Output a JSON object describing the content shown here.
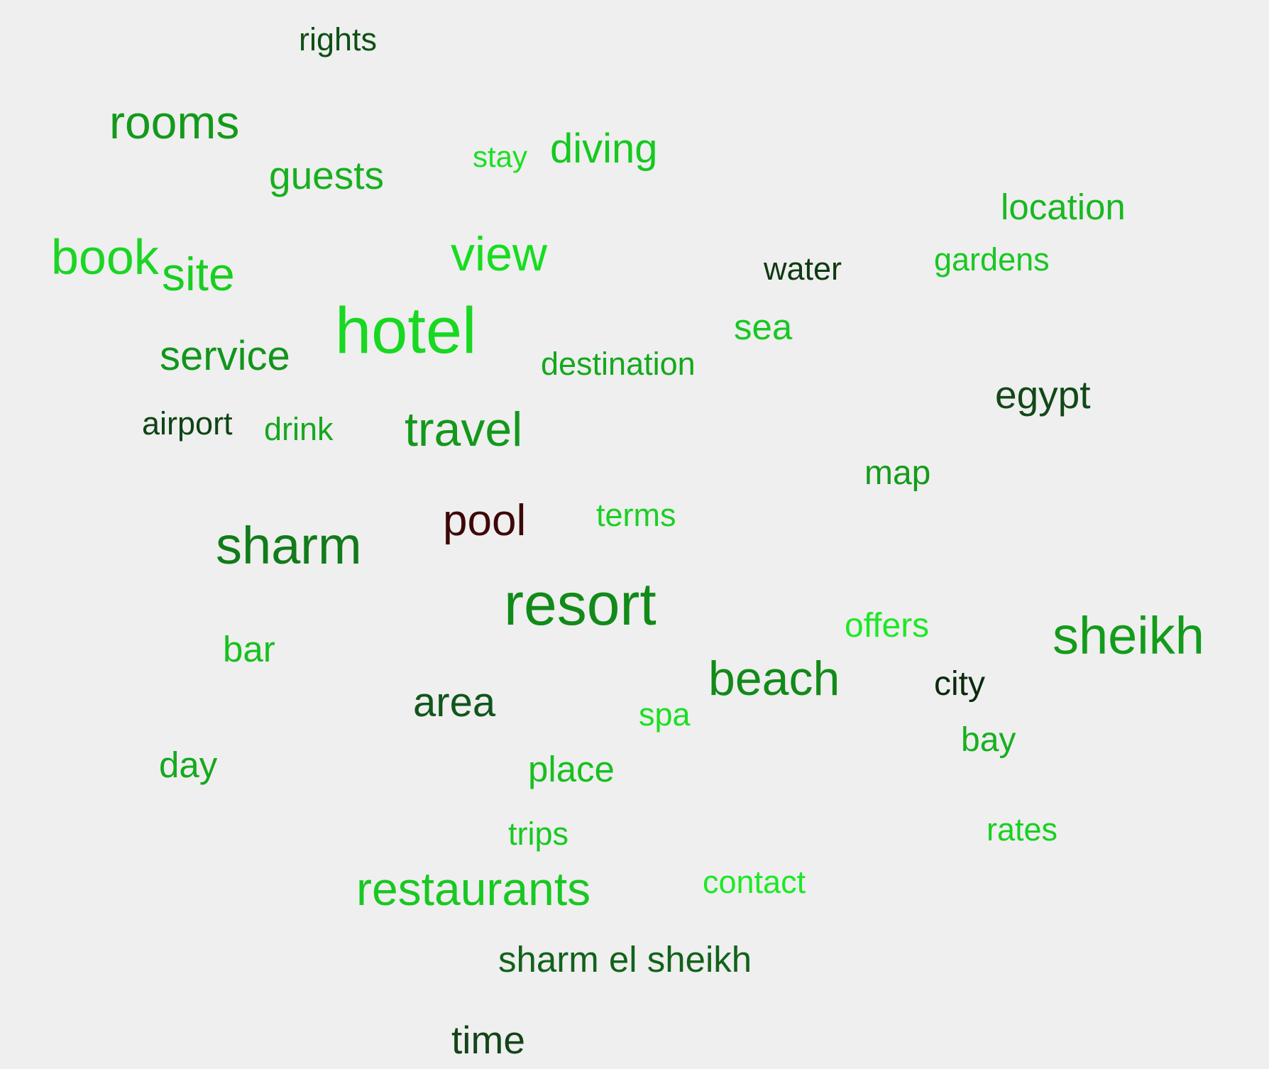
{
  "background": "#efefef",
  "words": [
    {
      "text": "rights",
      "color": "#0f4f16"
    },
    {
      "text": "rooms",
      "color": "#139a1b"
    },
    {
      "text": "guests",
      "color": "#16b01e"
    },
    {
      "text": "stay",
      "color": "#1adf23"
    },
    {
      "text": "diving",
      "color": "#16c81f"
    },
    {
      "text": "location",
      "color": "#18b821"
    },
    {
      "text": "book",
      "color": "#1bd524"
    },
    {
      "text": "site",
      "color": "#18ce21"
    },
    {
      "text": "view",
      "color": "#16dd1f"
    },
    {
      "text": "water",
      "color": "#103913"
    },
    {
      "text": "gardens",
      "color": "#18c821"
    },
    {
      "text": "hotel",
      "color": "#18d821"
    },
    {
      "text": "sea",
      "color": "#18c821"
    },
    {
      "text": "service",
      "color": "#12951a"
    },
    {
      "text": "destination",
      "color": "#15a81d"
    },
    {
      "text": "egypt",
      "color": "#124818"
    },
    {
      "text": "airport",
      "color": "#0e4414"
    },
    {
      "text": "drink",
      "color": "#16a81e"
    },
    {
      "text": "travel",
      "color": "#13981b"
    },
    {
      "text": "map",
      "color": "#139c1b"
    },
    {
      "text": "terms",
      "color": "#1ad023"
    },
    {
      "text": "pool",
      "color": "#3e0808"
    },
    {
      "text": "sharm",
      "color": "#127b1a"
    },
    {
      "text": "resort",
      "color": "#128a19"
    },
    {
      "text": "offers",
      "color": "#1ee827"
    },
    {
      "text": "sheikh",
      "color": "#139b1b"
    },
    {
      "text": "bar",
      "color": "#16c01f"
    },
    {
      "text": "beach",
      "color": "#128a19"
    },
    {
      "text": "city",
      "color": "#0b2a0e"
    },
    {
      "text": "area",
      "color": "#11561a"
    },
    {
      "text": "spa",
      "color": "#1adf23"
    },
    {
      "text": "bay",
      "color": "#16b01e"
    },
    {
      "text": "day",
      "color": "#16a81e"
    },
    {
      "text": "place",
      "color": "#16c01f"
    },
    {
      "text": "rates",
      "color": "#18d021"
    },
    {
      "text": "trips",
      "color": "#18c821"
    },
    {
      "text": "restaurants",
      "color": "#18c821"
    },
    {
      "text": "contact",
      "color": "#1ee827"
    },
    {
      "text": "sharm el sheikh",
      "color": "#11631a"
    },
    {
      "text": "time",
      "color": "#124518"
    }
  ]
}
